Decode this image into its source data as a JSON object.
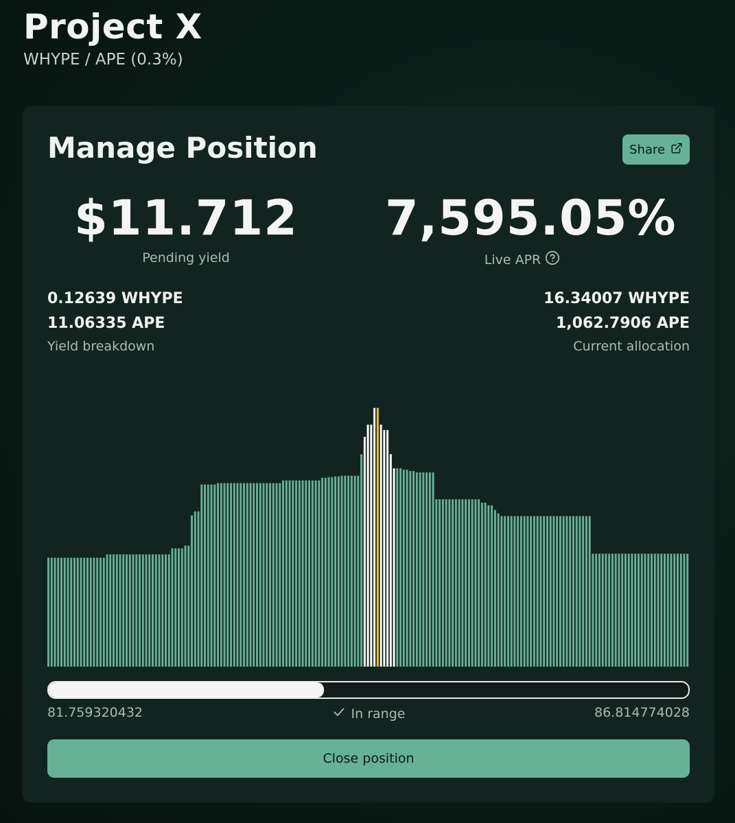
{
  "app": {
    "title": "Project X",
    "pair": "WHYPE / APE (0.3%)"
  },
  "card": {
    "title": "Manage Position",
    "share_label": "Share",
    "pending_yield": {
      "value": "$11.712",
      "label": "Pending yield"
    },
    "live_apr": {
      "value": "7,595.05%",
      "label": "Live APR"
    },
    "yield_breakdown": {
      "lines": [
        "0.12639 WHYPE",
        "11.06335 APE"
      ],
      "caption": "Yield breakdown"
    },
    "current_allocation": {
      "lines": [
        "16.34007 WHYPE",
        "1,062.7906 APE"
      ],
      "caption": "Current allocation"
    },
    "range": {
      "min": "81.759320432",
      "max": "86.814774028",
      "status": "In range",
      "fill_fraction": 0.43
    },
    "close_label": "Close position"
  },
  "colors": {
    "bar": "#67b197",
    "in_range_bar": "#ffffff",
    "current_bar": "#f2c230",
    "button": "#67b197"
  },
  "icons": {
    "share": "external-link-icon",
    "help": "question-circle-icon",
    "status": "check-icon"
  },
  "chart_data": {
    "type": "bar",
    "values": [
      162,
      162,
      162,
      162,
      162,
      162,
      162,
      162,
      162,
      162,
      162,
      162,
      162,
      162,
      162,
      162,
      162,
      162,
      167,
      167,
      167,
      167,
      167,
      167,
      167,
      167,
      167,
      167,
      167,
      167,
      167,
      167,
      167,
      167,
      167,
      167,
      167,
      167,
      176,
      176,
      176,
      176,
      180,
      180,
      225,
      231,
      231,
      271,
      271,
      271,
      271,
      271,
      273,
      273,
      273,
      273,
      273,
      273,
      273,
      273,
      273,
      273,
      273,
      273,
      273,
      273,
      273,
      273,
      273,
      273,
      273,
      273,
      277,
      277,
      277,
      277,
      277,
      277,
      277,
      277,
      277,
      277,
      277,
      277,
      281,
      281,
      282,
      282,
      283,
      283,
      284,
      284,
      284,
      284,
      284,
      284,
      316,
      342,
      360,
      360,
      385,
      385,
      360,
      352,
      352,
      316,
      295,
      295,
      295,
      293,
      293,
      291,
      291,
      289,
      289,
      289,
      289,
      289,
      289,
      249,
      249,
      249,
      249,
      249,
      249,
      249,
      249,
      249,
      249,
      249,
      249,
      249,
      249,
      244,
      244,
      240,
      240,
      233,
      228,
      224,
      224,
      224,
      224,
      224,
      224,
      224,
      224,
      224,
      224,
      224,
      224,
      224,
      224,
      224,
      224,
      224,
      224,
      224,
      224,
      224,
      224,
      224,
      224,
      224,
      224,
      224,
      224,
      168,
      168,
      168,
      168,
      168,
      168,
      168,
      168,
      168,
      168,
      168,
      168,
      168,
      168,
      168,
      168,
      168,
      168,
      168,
      168,
      168,
      168,
      168,
      168,
      168,
      168,
      168,
      168,
      168,
      168
    ],
    "in_range_start": 97,
    "in_range_end": 106,
    "current_index": 101,
    "ylim": [
      0,
      400
    ]
  }
}
